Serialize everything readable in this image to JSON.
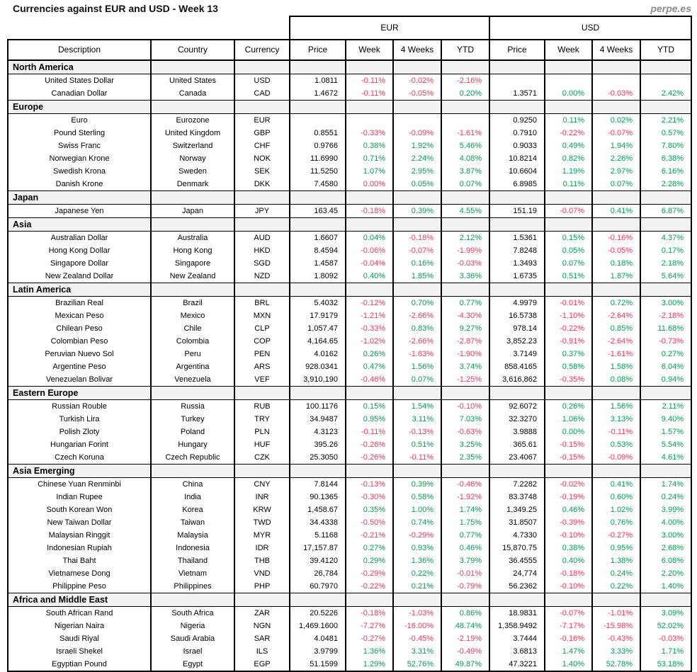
{
  "header": {
    "title": "Currencies against EUR and USD - Week 13",
    "site": "perpe.es"
  },
  "colors": {
    "positive": "#00A050",
    "negative": "#FF3355",
    "section_bg": "#F2F2F2",
    "border": "#000000",
    "site_text": "#8C8C8C"
  },
  "chart_data": {
    "type": "table",
    "title": "Currencies against EUR and USD - Week 13",
    "group_headers": [
      {
        "label": "",
        "span": 3
      },
      {
        "label": "EUR",
        "span": 4
      },
      {
        "label": "USD",
        "span": 4
      }
    ],
    "columns": [
      "Description",
      "Country",
      "Currency",
      "Price",
      "Week",
      "4 Weeks",
      "YTD",
      "Price",
      "Week",
      "4 Weeks",
      "YTD"
    ],
    "sections": [
      {
        "name": "North America",
        "rows": [
          {
            "d": "United States Dollar",
            "co": "United States",
            "cu": "USD",
            "e": [
              "1.0811",
              "-0.11%",
              "-0.02%",
              "-2.16%"
            ],
            "u": [
              "",
              "",
              "",
              ""
            ]
          },
          {
            "d": "Canadian Dollar",
            "co": "Canada",
            "cu": "CAD",
            "e": [
              "1.4672",
              "-0.11%",
              "-0.05%",
              "0.20%"
            ],
            "u": [
              "1.3571",
              "0.00%",
              "-0.03%",
              "2.42%"
            ]
          }
        ]
      },
      {
        "name": "Europe",
        "rows": [
          {
            "d": "Euro",
            "co": "Eurozone",
            "cu": "EUR",
            "e": [
              "",
              "",
              "",
              ""
            ],
            "u": [
              "0.9250",
              "0.11%",
              "0.02%",
              "2.21%"
            ]
          },
          {
            "d": "Pound Sterling",
            "co": "United Kingdom",
            "cu": "GBP",
            "e": [
              "0.8551",
              "-0.33%",
              "-0.09%",
              "-1.61%"
            ],
            "u": [
              "0.7910",
              "-0.22%",
              "-0.07%",
              "0.57%"
            ]
          },
          {
            "d": "Swiss Franc",
            "co": "Switzerland",
            "cu": "CHF",
            "e": [
              "0.9766",
              "0.38%",
              "1.92%",
              "5.46%"
            ],
            "u": [
              "0.9033",
              "0.49%",
              "1.94%",
              "7.80%"
            ]
          },
          {
            "d": "Norwegian Krone",
            "co": "Norway",
            "cu": "NOK",
            "e": [
              "11.6990",
              "0.71%",
              "2.24%",
              "4.08%"
            ],
            "u": [
              "10.8214",
              "0.82%",
              "2.26%",
              "6.38%"
            ]
          },
          {
            "d": "Swedish Krona",
            "co": "Sweden",
            "cu": "SEK",
            "e": [
              "11.5250",
              "1.07%",
              "2.95%",
              "3.87%"
            ],
            "u": [
              "10.6604",
              "1.19%",
              "2.97%",
              "6.16%"
            ]
          },
          {
            "d": "Danish Krone",
            "co": "Denmark",
            "cu": "DKK",
            "e": [
              "7.4580",
              "0.00%",
              "0.05%",
              "0.07%"
            ],
            "u": [
              "6.8985",
              "0.11%",
              "0.07%",
              "2.28%"
            ],
            "ec": [
              "neg",
              "",
              ""
            ]
          }
        ]
      },
      {
        "name": "Japan",
        "rows": [
          {
            "d": "Japanese Yen",
            "co": "Japan",
            "cu": "JPY",
            "e": [
              "163.45",
              "-0.18%",
              "0.39%",
              "4.55%"
            ],
            "u": [
              "151.19",
              "-0.07%",
              "0.41%",
              "6.87%"
            ]
          }
        ]
      },
      {
        "name": "Asia",
        "rows": [
          {
            "d": "Australian Dollar",
            "co": "Australia",
            "cu": "AUD",
            "e": [
              "1.6607",
              "0.04%",
              "-0.18%",
              "2.12%"
            ],
            "u": [
              "1.5361",
              "0.15%",
              "-0.16%",
              "4.37%"
            ]
          },
          {
            "d": "Hong Kong Dollar",
            "co": "Hong Kong",
            "cu": "HKD",
            "e": [
              "8.4594",
              "-0.06%",
              "-0.07%",
              "-1.99%"
            ],
            "u": [
              "7.8248",
              "0.05%",
              "-0.05%",
              "0.17%"
            ]
          },
          {
            "d": "Singapore Dollar",
            "co": "Singapore",
            "cu": "SGD",
            "e": [
              "1.4587",
              "-0.04%",
              "0.16%",
              "-0.03%"
            ],
            "u": [
              "1.3493",
              "0.07%",
              "0.18%",
              "2.18%"
            ]
          },
          {
            "d": "New Zealand Dollar",
            "co": "New Zealand",
            "cu": "NZD",
            "e": [
              "1.8092",
              "0.40%",
              "1.85%",
              "3.36%"
            ],
            "u": [
              "1.6735",
              "0.51%",
              "1.87%",
              "5.64%"
            ]
          }
        ]
      },
      {
        "name": "Latin America",
        "rows": [
          {
            "d": "Brazilian Real",
            "co": "Brazil",
            "cu": "BRL",
            "e": [
              "5.4032",
              "-0.12%",
              "0.70%",
              "0.77%"
            ],
            "u": [
              "4.9979",
              "-0.01%",
              "0.72%",
              "3.00%"
            ]
          },
          {
            "d": "Mexican Peso",
            "co": "Mexico",
            "cu": "MXN",
            "e": [
              "17.9179",
              "-1.21%",
              "-2.66%",
              "-4.30%"
            ],
            "u": [
              "16.5738",
              "-1.10%",
              "-2.64%",
              "-2.18%"
            ]
          },
          {
            "d": "Chilean Peso",
            "co": "Chile",
            "cu": "CLP",
            "e": [
              "1,057.47",
              "-0.33%",
              "0.83%",
              "9.27%"
            ],
            "u": [
              "978.14",
              "-0.22%",
              "0.85%",
              "11.68%"
            ]
          },
          {
            "d": "Colombian Peso",
            "co": "Colombia",
            "cu": "COP",
            "e": [
              "4,164.65",
              "-1.02%",
              "-2.66%",
              "-2.87%"
            ],
            "u": [
              "3,852.23",
              "-0.91%",
              "-2.64%",
              "-0.73%"
            ]
          },
          {
            "d": "Peruvian Nuevo Sol",
            "co": "Peru",
            "cu": "PEN",
            "e": [
              "4.0162",
              "0.26%",
              "-1.63%",
              "-1.90%"
            ],
            "u": [
              "3.7149",
              "0.37%",
              "-1.61%",
              "0.27%"
            ]
          },
          {
            "d": "Argentine Peso",
            "co": "Argentina",
            "cu": "ARS",
            "e": [
              "928.0341",
              "0.47%",
              "1.56%",
              "3.74%"
            ],
            "u": [
              "858.4165",
              "0.58%",
              "1.58%",
              "6.04%"
            ]
          },
          {
            "d": "Venezuelan Bolivar",
            "co": "Venezuela",
            "cu": "VEF",
            "e": [
              "3,910,190",
              "-0.46%",
              "0.07%",
              "-1.25%"
            ],
            "u": [
              "3,616,862",
              "-0.35%",
              "0.08%",
              "0.94%"
            ]
          }
        ]
      },
      {
        "name": "Eastern Europe",
        "rows": [
          {
            "d": "Russian Rouble",
            "co": "Russia",
            "cu": "RUB",
            "e": [
              "100.1176",
              "0.15%",
              "1.54%",
              "-0.10%"
            ],
            "u": [
              "92.6072",
              "0.26%",
              "1.56%",
              "2.11%"
            ]
          },
          {
            "d": "Turkish Lira",
            "co": "Turkey",
            "cu": "TRY",
            "e": [
              "34.9487",
              "0.95%",
              "3.11%",
              "7.03%"
            ],
            "u": [
              "32.3270",
              "1.06%",
              "3.13%",
              "9.40%"
            ]
          },
          {
            "d": "Polish Zloty",
            "co": "Poland",
            "cu": "PLN",
            "e": [
              "4.3123",
              "-0.11%",
              "-0.13%",
              "-0.63%"
            ],
            "u": [
              "3.9888",
              "0.00%",
              "-0.11%",
              "1.57%"
            ]
          },
          {
            "d": "Hungarian Forint",
            "co": "Hungary",
            "cu": "HUF",
            "e": [
              "395.26",
              "-0.26%",
              "0.51%",
              "3.25%"
            ],
            "u": [
              "365.61",
              "-0.15%",
              "0.53%",
              "5.54%"
            ]
          },
          {
            "d": "Czech Koruna",
            "co": "Czech Republic",
            "cu": "CZK",
            "e": [
              "25.3050",
              "-0.26%",
              "-0.11%",
              "2.35%"
            ],
            "u": [
              "23.4067",
              "-0.15%",
              "-0.09%",
              "4.61%"
            ]
          }
        ]
      },
      {
        "name": "Asia Emerging",
        "rows": [
          {
            "d": "Chinese Yuan Renminbi",
            "co": "China",
            "cu": "CNY",
            "e": [
              "7.8144",
              "-0.13%",
              "0.39%",
              "-0.46%"
            ],
            "u": [
              "7.2282",
              "-0.02%",
              "0.41%",
              "1.74%"
            ]
          },
          {
            "d": "Indian Rupee",
            "co": "India",
            "cu": "INR",
            "e": [
              "90.1365",
              "-0.30%",
              "0.58%",
              "-1.92%"
            ],
            "u": [
              "83.3748",
              "-0.19%",
              "0.60%",
              "0.24%"
            ]
          },
          {
            "d": "South Korean Won",
            "co": "Korea",
            "cu": "KRW",
            "e": [
              "1,458.67",
              "0.35%",
              "1.00%",
              "1.74%"
            ],
            "u": [
              "1,349.25",
              "0.46%",
              "1.02%",
              "3.99%"
            ]
          },
          {
            "d": "New Taiwan Dollar",
            "co": "Taiwan",
            "cu": "TWD",
            "e": [
              "34.4338",
              "-0.50%",
              "0.74%",
              "1.75%"
            ],
            "u": [
              "31.8507",
              "-0.39%",
              "0.76%",
              "4.00%"
            ]
          },
          {
            "d": "Malaysian Ringgit",
            "co": "Malaysia",
            "cu": "MYR",
            "e": [
              "5.1168",
              "-0.21%",
              "-0.29%",
              "0.77%"
            ],
            "u": [
              "4.7330",
              "-0.10%",
              "-0.27%",
              "3.00%"
            ]
          },
          {
            "d": "Indonesian Rupiah",
            "co": "Indonesia",
            "cu": "IDR",
            "e": [
              "17,157.87",
              "0.27%",
              "0.93%",
              "0.46%"
            ],
            "u": [
              "15,870.75",
              "0.38%",
              "0.95%",
              "2.68%"
            ]
          },
          {
            "d": "Thai Baht",
            "co": "Thailand",
            "cu": "THB",
            "e": [
              "39.4120",
              "0.29%",
              "1.36%",
              "3.79%"
            ],
            "u": [
              "36.4555",
              "0.40%",
              "1.38%",
              "6.08%"
            ]
          },
          {
            "d": "Vietnamese Dong",
            "co": "Vietnam",
            "cu": "VND",
            "e": [
              "26,784",
              "-0.29%",
              "0.22%",
              "-0.01%"
            ],
            "u": [
              "24,774",
              "-0.18%",
              "0.24%",
              "2.20%"
            ]
          },
          {
            "d": "Philippine Peso",
            "co": "Philippines",
            "cu": "PHP",
            "e": [
              "60.7970",
              "-0.22%",
              "0.21%",
              "-0.79%"
            ],
            "u": [
              "56.2362",
              "-0.10%",
              "0.22%",
              "1.40%"
            ]
          }
        ]
      },
      {
        "name": "Africa and Middle East",
        "rows": [
          {
            "d": "South African Rand",
            "co": "South Africa",
            "cu": "ZAR",
            "e": [
              "20.5226",
              "-0.18%",
              "-1.03%",
              "0.86%"
            ],
            "u": [
              "18.9831",
              "-0.07%",
              "-1.01%",
              "3.09%"
            ]
          },
          {
            "d": "Nigerian Naira",
            "co": "Nigeria",
            "cu": "NGN",
            "e": [
              "1,469.1600",
              "-7.27%",
              "-16.00%",
              "48.74%"
            ],
            "u": [
              "1,358.9492",
              "-7.17%",
              "-15.98%",
              "52.02%"
            ]
          },
          {
            "d": "Saudi Riyal",
            "co": "Saudi Arabia",
            "cu": "SAR",
            "e": [
              "4.0481",
              "-0.27%",
              "-0.45%",
              "-2.19%"
            ],
            "u": [
              "3.7444",
              "-0.16%",
              "-0.43%",
              "-0.03%"
            ]
          },
          {
            "d": "Israeli Shekel",
            "co": "Israel",
            "cu": "ILS",
            "e": [
              "3.9799",
              "1.36%",
              "3.31%",
              "-0.49%"
            ],
            "u": [
              "3.6813",
              "1.47%",
              "3.33%",
              "1.71%"
            ]
          },
          {
            "d": "Egyptian Pound",
            "co": "Egypt",
            "cu": "EGP",
            "e": [
              "51.1599",
              "1.29%",
              "52.76%",
              "49.87%"
            ],
            "u": [
              "47.3221",
              "1.40%",
              "52.78%",
              "53.18%"
            ]
          }
        ]
      }
    ]
  }
}
